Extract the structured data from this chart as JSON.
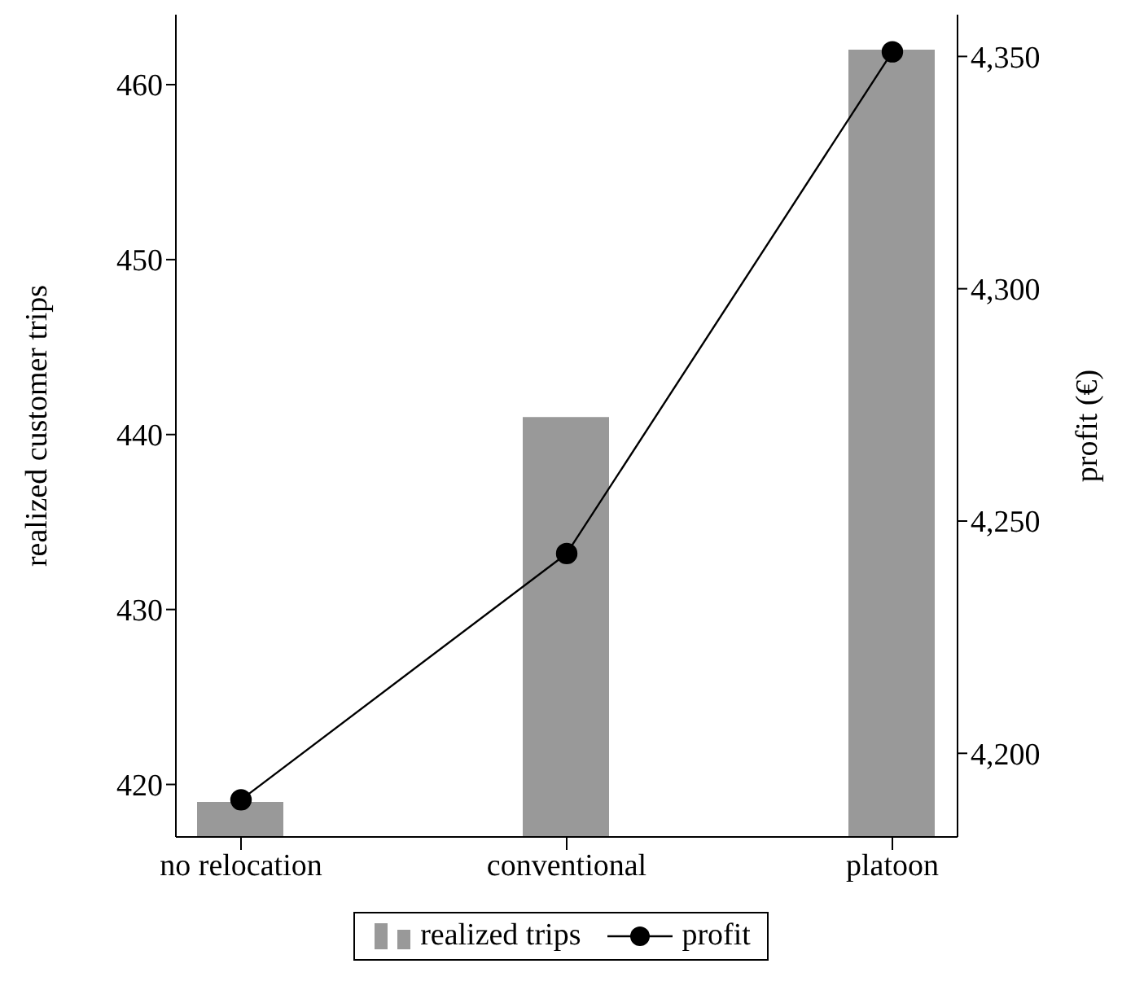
{
  "chart_data": {
    "type": "bar",
    "categories": [
      "no relocation",
      "conventional",
      "platoon"
    ],
    "series": [
      {
        "name": "realized trips",
        "color": "#999999",
        "values": [
          419,
          441,
          462
        ]
      },
      {
        "name": "profit",
        "type": "line",
        "axis": "y2",
        "color": "#000000",
        "values": [
          4190,
          4243,
          4351
        ]
      }
    ],
    "ylabel": "realized customer trips",
    "y2label": "profit (€)",
    "ylim": [
      417,
      464
    ],
    "yticks": [
      420,
      430,
      440,
      450,
      460
    ],
    "y2lim": [
      4182,
      4359
    ],
    "y2ticks": [
      {
        "value": 4200,
        "label": "4,200"
      },
      {
        "value": 4250,
        "label": "4,250"
      },
      {
        "value": 4300,
        "label": "4,300"
      },
      {
        "value": 4350,
        "label": "4,350"
      }
    ],
    "legend": "bottom",
    "marker": "circle"
  }
}
